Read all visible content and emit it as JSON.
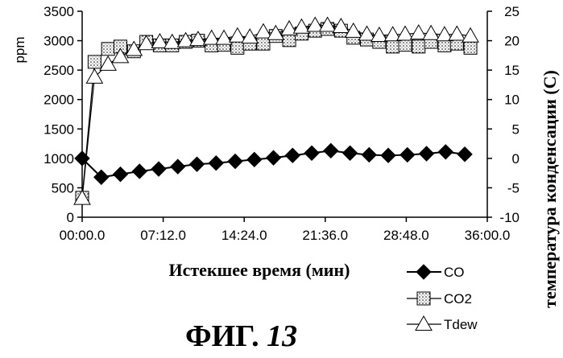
{
  "chart_data": {
    "type": "line",
    "xlabel": "Истекшее время (мин)",
    "ylabel": "ppm",
    "y2label": "температура конденсации (C)",
    "caption_prefix": "ФИГ.",
    "caption_number": "13",
    "xlim": [
      0,
      36
    ],
    "ylim": [
      0,
      3500
    ],
    "y2lim": [
      -10,
      25
    ],
    "x_tick_labels": [
      "00:00.0",
      "07:12.0",
      "14:24.0",
      "21:36.0",
      "28:48.0",
      "36:00.0"
    ],
    "x_tick_values": [
      0,
      7.2,
      14.4,
      21.6,
      28.8,
      36
    ],
    "y_ticks": [
      0,
      500,
      1000,
      1500,
      2000,
      2500,
      3000,
      3500
    ],
    "y2_ticks": [
      -10,
      -5,
      0,
      5,
      10,
      15,
      20,
      25
    ],
    "grid": false,
    "legend_position": "bottom-right",
    "series": [
      {
        "name": "CO",
        "marker": "diamond",
        "axis": "left",
        "x": [
          0,
          1.7,
          3.4,
          5.1,
          6.8,
          8.5,
          10.2,
          11.9,
          13.6,
          15.3,
          17.0,
          18.7,
          20.4,
          22.1,
          23.8,
          25.5,
          27.2,
          28.9,
          30.6,
          32.3,
          34.0
        ],
        "values": [
          1000,
          680,
          730,
          780,
          820,
          860,
          900,
          920,
          950,
          980,
          1010,
          1050,
          1090,
          1130,
          1090,
          1060,
          1050,
          1060,
          1080,
          1110,
          1070
        ]
      },
      {
        "name": "CO2",
        "marker": "square",
        "axis": "left",
        "x": [
          0,
          1.1,
          2.3,
          3.4,
          4.6,
          5.7,
          6.9,
          8.0,
          9.2,
          10.3,
          11.5,
          12.6,
          13.8,
          14.9,
          16.1,
          17.2,
          18.4,
          19.5,
          20.7,
          21.8,
          23.0,
          24.1,
          25.3,
          26.4,
          27.6,
          28.7,
          29.9,
          31.0,
          32.2,
          33.3,
          34.5
        ],
        "values": [
          330,
          2640,
          2860,
          2900,
          2820,
          2980,
          2920,
          2920,
          2980,
          3000,
          2920,
          2930,
          2880,
          2950,
          2950,
          3080,
          3010,
          3120,
          3170,
          3200,
          3170,
          3050,
          3020,
          2980,
          2900,
          2930,
          2900,
          2980,
          2920,
          2950,
          2880
        ]
      },
      {
        "name": "Tdew",
        "marker": "triangle",
        "axis": "right",
        "x": [
          0,
          1.1,
          2.3,
          3.4,
          4.6,
          5.7,
          6.9,
          8.0,
          9.2,
          10.3,
          11.5,
          12.6,
          13.8,
          14.9,
          16.1,
          17.2,
          18.4,
          19.5,
          20.7,
          21.8,
          23.0,
          24.1,
          25.3,
          26.4,
          27.6,
          28.7,
          29.9,
          31.0,
          32.2,
          33.3,
          34.5
        ],
        "values": [
          -6.8,
          13.8,
          16.0,
          17.3,
          18.5,
          19.5,
          19.8,
          19.7,
          20.0,
          20.2,
          20.4,
          20.4,
          20.8,
          20.6,
          21.5,
          21.2,
          22.0,
          22.3,
          22.6,
          22.6,
          22.4,
          21.6,
          21.1,
          20.9,
          21.0,
          21.1,
          21.3,
          21.2,
          21.0,
          21.1,
          20.8
        ]
      }
    ]
  }
}
